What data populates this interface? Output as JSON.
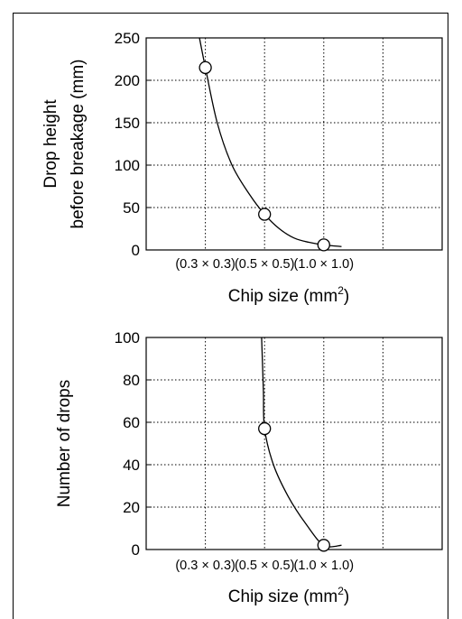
{
  "chart_data": [
    {
      "type": "line",
      "xlabel": "Chip size (mm²)",
      "xlabel_base": "Chip size (mm",
      "xlabel_sup": "2",
      "xlabel_end": ")",
      "ylabel_lines": [
        "Drop height",
        "before breakage (mm)"
      ],
      "categories": [
        "(0.3 × 0.3)",
        "(0.5 × 0.5)",
        "(1.0 × 1.0)"
      ],
      "xlim": [
        0,
        5
      ],
      "ylim": [
        0,
        250
      ],
      "yticks": [
        0,
        50,
        100,
        150,
        200,
        250
      ],
      "grid": true,
      "series": [
        {
          "points": [
            {
              "x": 1.0,
              "y": 215
            },
            {
              "x": 2.0,
              "y": 42
            },
            {
              "x": 3.0,
              "y": 6
            }
          ],
          "curve": [
            {
              "x": 0.9,
              "y": 250
            },
            {
              "x": 1.0,
              "y": 215
            },
            {
              "x": 1.2,
              "y": 150
            },
            {
              "x": 1.45,
              "y": 100
            },
            {
              "x": 1.75,
              "y": 65
            },
            {
              "x": 2.0,
              "y": 42
            },
            {
              "x": 2.25,
              "y": 25
            },
            {
              "x": 2.5,
              "y": 14
            },
            {
              "x": 2.75,
              "y": 9
            },
            {
              "x": 3.0,
              "y": 6
            },
            {
              "x": 3.3,
              "y": 4
            }
          ]
        }
      ]
    },
    {
      "type": "line",
      "xlabel": "Chip size (mm²)",
      "xlabel_base": "Chip size (mm",
      "xlabel_sup": "2",
      "xlabel_end": ")",
      "ylabel_lines": [
        "Number of drops"
      ],
      "categories": [
        "(0.3 × 0.3)",
        "(0.5 × 0.5)",
        "(1.0 × 1.0)"
      ],
      "xlim": [
        0,
        5
      ],
      "ylim": [
        0,
        100
      ],
      "yticks": [
        0,
        20,
        40,
        60,
        80,
        100
      ],
      "grid": true,
      "series": [
        {
          "points": [
            {
              "x": 2.0,
              "y": 57
            },
            {
              "x": 3.0,
              "y": 2
            }
          ],
          "curve": [
            {
              "x": 1.95,
              "y": 100
            },
            {
              "x": 1.98,
              "y": 75
            },
            {
              "x": 2.0,
              "y": 57
            },
            {
              "x": 2.15,
              "y": 40
            },
            {
              "x": 2.4,
              "y": 25
            },
            {
              "x": 2.7,
              "y": 12
            },
            {
              "x": 3.0,
              "y": 2
            },
            {
              "x": 3.3,
              "y": 2
            }
          ]
        }
      ]
    }
  ]
}
